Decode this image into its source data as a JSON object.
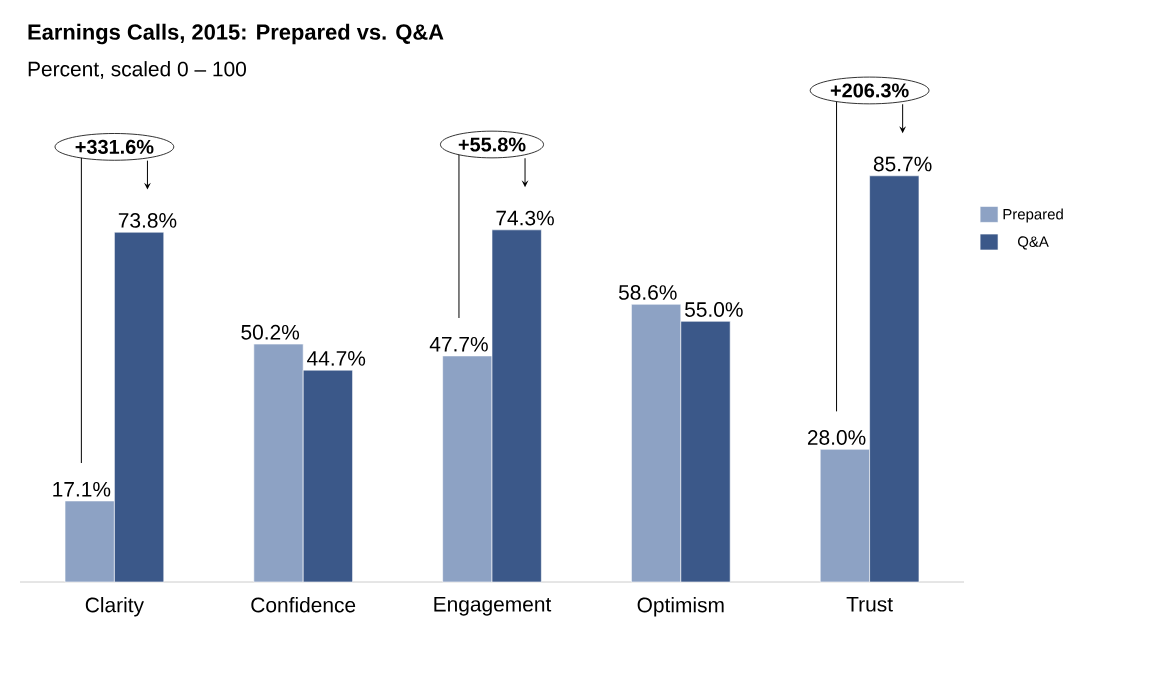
{
  "chart_data": {
    "type": "bar",
    "title": "Earnings Calls, 2015: Prepared vs. Q&A",
    "subtitle": "Percent, scaled 0 – 100",
    "categories": [
      "Clarity",
      "Confidence",
      "Engagement",
      "Optimism",
      "Trust"
    ],
    "series": [
      {
        "name": "Prepared",
        "color": "#8da2c4",
        "values": [
          17.1,
          50.2,
          47.7,
          58.6,
          28.0
        ],
        "value_labels": [
          "17.1%",
          "50.2%",
          "47.7%",
          "58.6%",
          "28.0%"
        ]
      },
      {
        "name": "Q&A",
        "color": "#3b5889",
        "values": [
          73.8,
          44.7,
          74.3,
          55.0,
          85.7
        ],
        "value_labels": [
          "73.8%",
          "44.7%",
          "74.3%",
          "55.0%",
          "85.7%"
        ]
      }
    ],
    "annotations": [
      "+331.6%",
      "+55.8%",
      "+206.3%"
    ],
    "legend": "top right",
    "tick_labels": "x"
  }
}
